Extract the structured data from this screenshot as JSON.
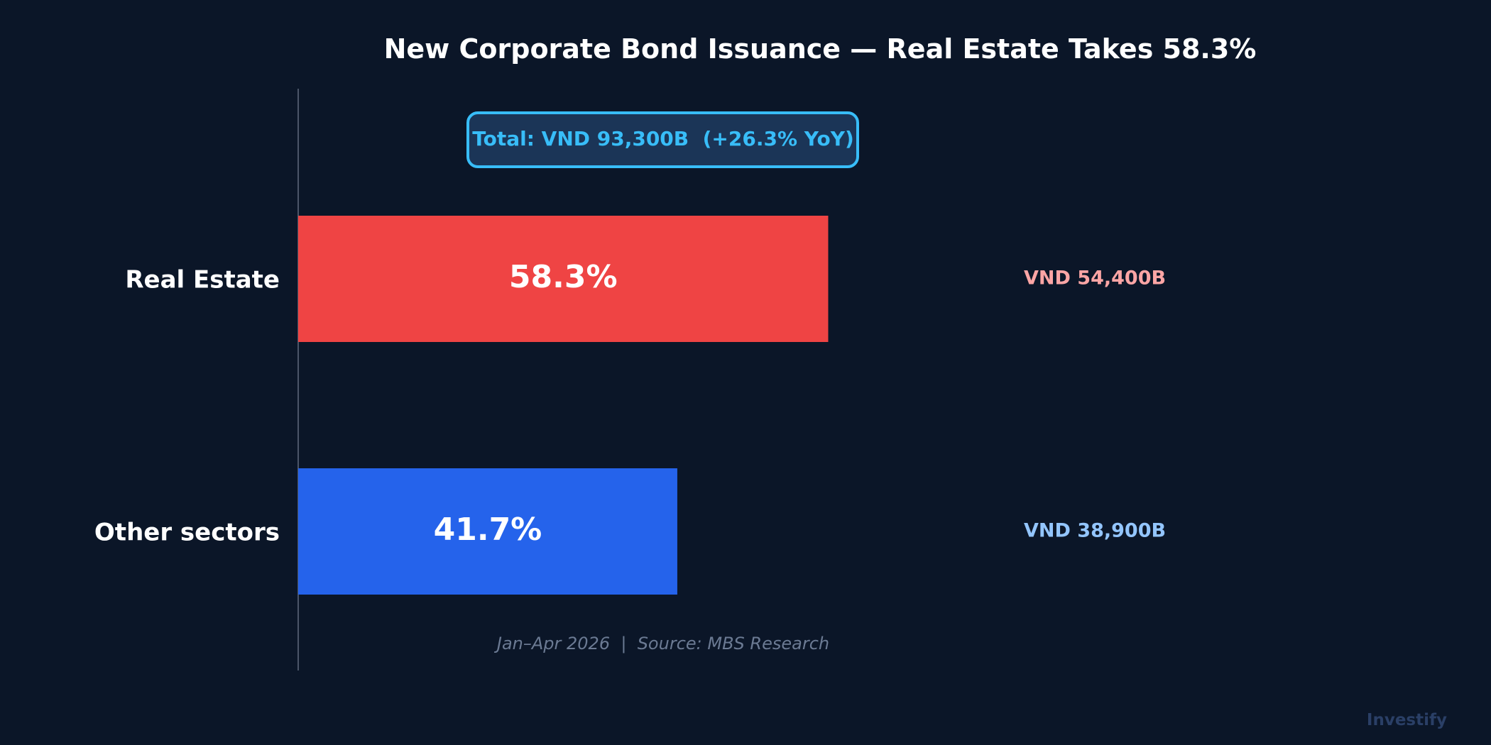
{
  "chart_data": {
    "type": "bar",
    "orientation": "horizontal",
    "title": "New Corporate Bond Issuance — Real Estate Takes 58.3%",
    "categories": [
      "Real Estate",
      "Other sectors"
    ],
    "values": [
      58.3,
      41.7
    ],
    "value_labels": [
      "58.3%",
      "41.7%"
    ],
    "amount_labels": [
      "VND 54,400B",
      "VND 38,900B"
    ],
    "bar_colors": [
      "#ef4444",
      "#2563eb"
    ],
    "amount_colors": [
      "#fca5a5",
      "#93c5fd"
    ],
    "xlim": [
      0,
      100
    ],
    "grid": false,
    "annotation": "Total: VND 93,300B  (+26.3% YoY)",
    "footnote": "Jan–Apr 2026  |  Source: MBS Research"
  },
  "colors": {
    "background": "#0b1628",
    "accent": "#38bdf8",
    "annotation_fill": "#1b3557",
    "axis": "#4b5568",
    "text": "#ffffff",
    "footnote": "#6b7a93"
  },
  "brand": "Investify"
}
